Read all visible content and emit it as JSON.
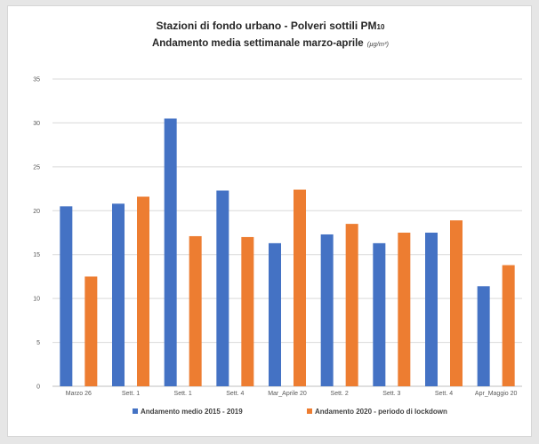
{
  "chart_data": {
    "type": "bar",
    "title_line1": "Stazioni  di fondo urbano - Polveri sottili PM",
    "title_sub": "10",
    "title_line2": "Andamento media settimanale marzo-aprile",
    "unit": "(µg/m³)",
    "categories": [
      "Marzo 26",
      "Sett. 1",
      "Sett. 1",
      "Sett. 4",
      "Mar_Aprile 20",
      "Sett. 2",
      "Sett. 3",
      "Sett. 4",
      "Apr_Maggio 20"
    ],
    "series": [
      {
        "name": "Andamento medio 2015 - 2019",
        "color": "#4472c4",
        "values": [
          20.5,
          20.8,
          30.5,
          22.3,
          16.3,
          17.3,
          16.3,
          17.5,
          11.4
        ]
      },
      {
        "name": "Andamento 2020 - periodo di lockdown",
        "color": "#ed7d31",
        "values": [
          12.5,
          21.6,
          17.1,
          17.0,
          22.4,
          18.5,
          17.5,
          18.9,
          13.8
        ]
      }
    ],
    "ylim": [
      0,
      35
    ],
    "yticks": [
      0,
      5,
      10,
      15,
      20,
      25,
      30,
      35
    ],
    "grid": true,
    "legend_position": "bottom",
    "xlabel": "",
    "ylabel": ""
  }
}
